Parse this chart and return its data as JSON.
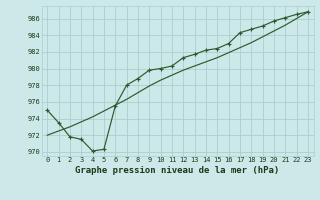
{
  "title": "Graphe pression niveau de la mer (hPa)",
  "x_hours": [
    0,
    1,
    2,
    3,
    4,
    5,
    6,
    7,
    8,
    9,
    10,
    11,
    12,
    13,
    14,
    15,
    16,
    17,
    18,
    19,
    20,
    21,
    22,
    23
  ],
  "line1_y": [
    975.0,
    973.5,
    971.8,
    971.5,
    970.1,
    970.3,
    975.5,
    978.0,
    978.8,
    979.8,
    980.0,
    980.3,
    981.3,
    981.7,
    982.2,
    982.4,
    983.0,
    984.3,
    984.7,
    985.1,
    985.7,
    986.1,
    986.5,
    986.8
  ],
  "smooth_y": [
    972.0,
    972.5,
    973.0,
    973.6,
    974.2,
    974.9,
    975.6,
    976.3,
    977.1,
    977.9,
    978.6,
    979.2,
    979.8,
    980.3,
    980.8,
    981.3,
    981.9,
    982.5,
    983.1,
    983.8,
    984.5,
    985.2,
    986.0,
    986.8
  ],
  "ylim": [
    969.5,
    987.5
  ],
  "yticks": [
    970,
    972,
    974,
    976,
    978,
    980,
    982,
    984,
    986
  ],
  "xlim": [
    -0.5,
    23.5
  ],
  "bg_color": "#cce8e8",
  "grid_color": "#aacfcf",
  "line_color": "#2d5a2d",
  "title_color": "#1a3a1a",
  "title_fontsize": 6.5,
  "tick_fontsize": 5.0,
  "label_color": "#1a3a1a"
}
